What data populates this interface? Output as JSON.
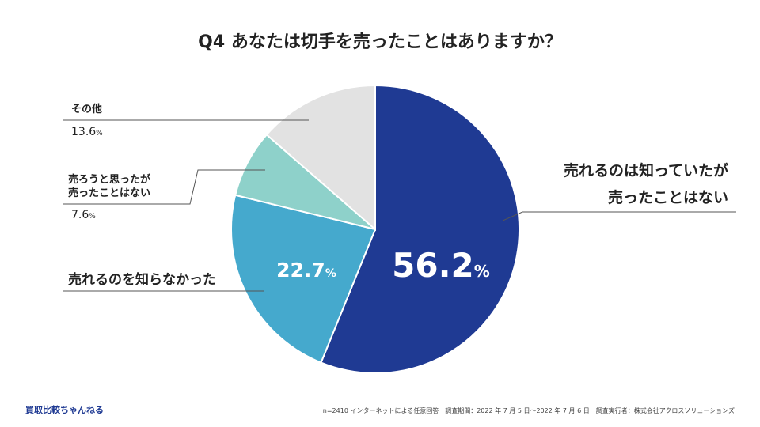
{
  "chart_data": {
    "type": "pie",
    "title": "Q4 あなたは切手を売ったことはありますか？",
    "unit": "%",
    "slices": [
      {
        "label_lines": [
          "売れるのは知っていたが",
          "売ったことはない"
        ],
        "value": 56.2,
        "color": "#1f3a93"
      },
      {
        "label_lines": [
          "売れるのを知らなかった"
        ],
        "value": 22.7,
        "color": "#45a9cd"
      },
      {
        "label_lines": [
          "売ろうと思ったが",
          "売ったことはない"
        ],
        "value": 7.6,
        "color": "#8ed1ca"
      },
      {
        "label_lines": [
          "その他"
        ],
        "value": 13.6,
        "color": "#e2e2e2"
      }
    ]
  },
  "footer": {
    "brand": "買取比較ちゃんねる",
    "brand_color": "#1f3a93",
    "note": "n=2410 インターネットによる任意回答　調査期間：2022 年 7 月 5 日〜2022 年 7 月 6 日　調査実行者：株式会社アクロスソリューションズ"
  }
}
